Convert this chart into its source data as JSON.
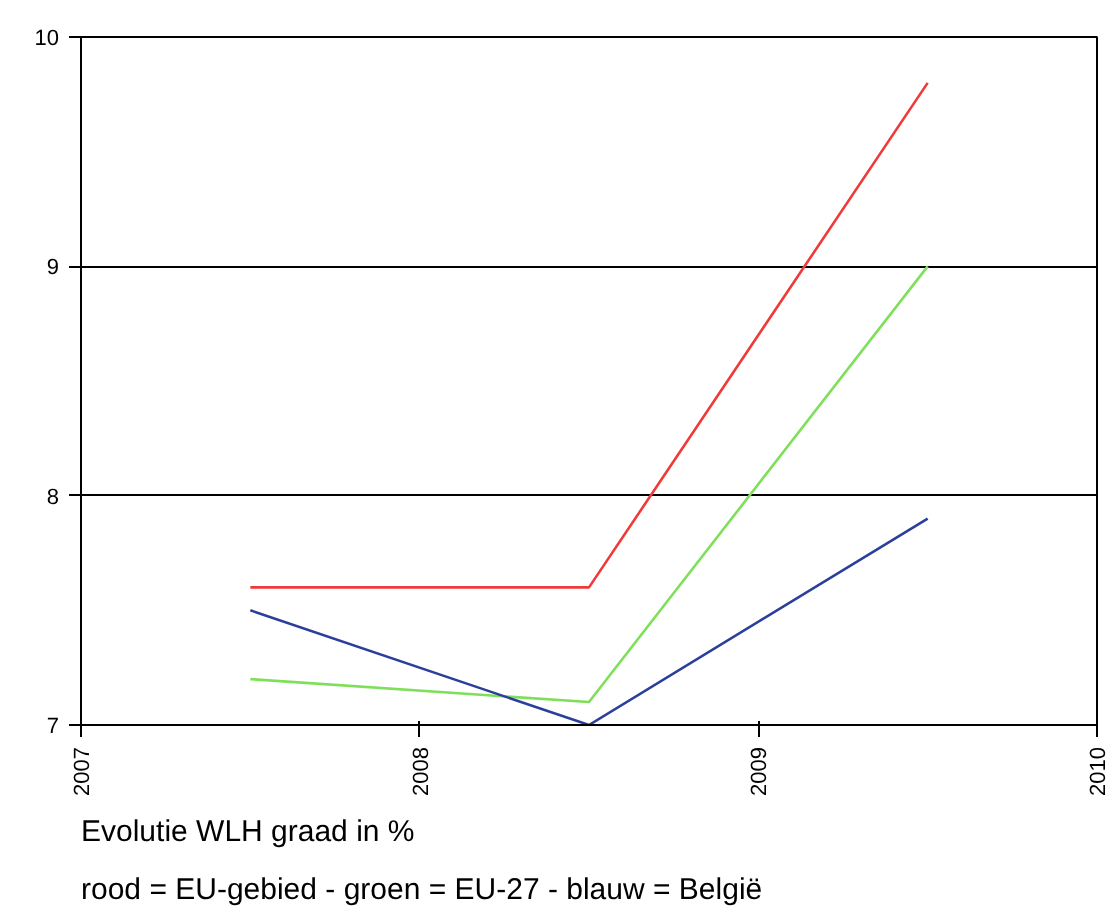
{
  "chart_data": {
    "type": "line",
    "x": [
      2007.5,
      2008.5,
      2009.5
    ],
    "series": [
      {
        "color": "#f03a3a",
        "values": [
          7.6,
          7.6,
          9.8
        ]
      },
      {
        "color": "#7ee05a",
        "values": [
          7.2,
          7.1,
          9.0
        ]
      },
      {
        "color": "#2a3f9a",
        "values": [
          7.5,
          7.0,
          7.9
        ]
      }
    ],
    "xlim": [
      2007,
      2010
    ],
    "xticks": [
      2007,
      2008,
      2009,
      2010
    ],
    "ylim": [
      7,
      10
    ],
    "yticks": [
      7,
      8,
      9,
      10
    ],
    "grid": "y",
    "marker": "none",
    "line_style": "solid",
    "annotations": [
      "Evolutie WLH graad in %",
      "rood = EU-gebied - groen = EU-27 - blauw = België"
    ]
  }
}
